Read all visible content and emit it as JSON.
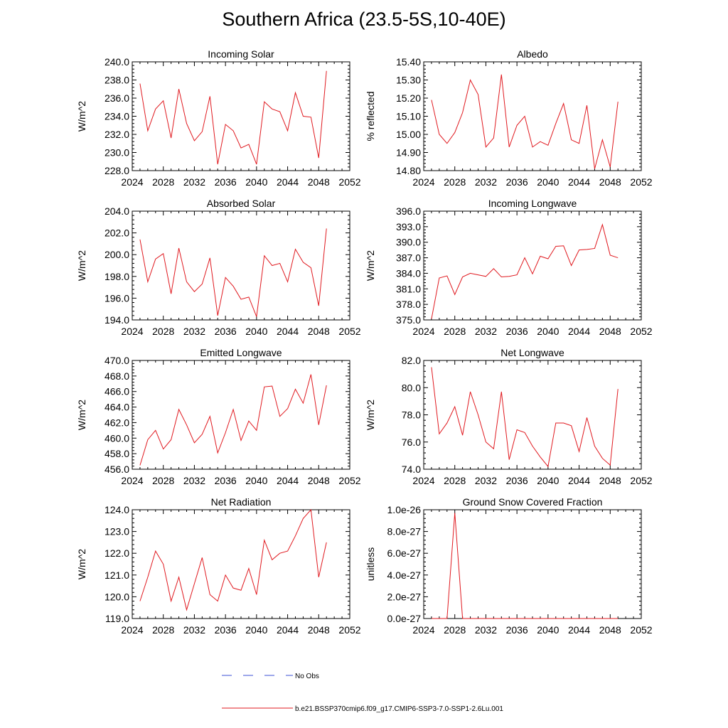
{
  "title": "Southern Africa (23.5-5S,10-40E)",
  "legend": {
    "obs_label": "No Obs",
    "obs_color": "#3b4fd6",
    "model_label": "b.e21.BSSP370cmip6.f09_g17.CMIP6-SSP3-7.0-SSP1-2.6Lu.001",
    "model_color": "#e0191f"
  },
  "chart_data": [
    {
      "type": "line",
      "title": "Incoming Solar",
      "ylabel": "W/m^2",
      "x": [
        2025,
        2026,
        2027,
        2028,
        2029,
        2030,
        2031,
        2032,
        2033,
        2034,
        2035,
        2036,
        2037,
        2038,
        2039,
        2040,
        2041,
        2042,
        2043,
        2044,
        2045,
        2046,
        2047,
        2048,
        2049
      ],
      "series": [
        {
          "values": [
            237.6,
            232.4,
            234.8,
            235.7,
            231.6,
            237.0,
            233.2,
            231.3,
            232.3,
            236.2,
            228.7,
            233.1,
            232.4,
            230.5,
            230.9,
            228.7,
            235.6,
            234.8,
            234.5,
            232.4,
            236.6,
            234.0,
            233.9,
            229.4,
            239.0
          ]
        }
      ],
      "xlim": [
        2024,
        2052
      ],
      "xticks": [
        "2024",
        "2028",
        "2032",
        "2036",
        "2040",
        "2044",
        "2048",
        "2052"
      ],
      "ylim": [
        228.0,
        240.0
      ],
      "yticks": [
        "228.0",
        "230.0",
        "232.0",
        "234.0",
        "236.0",
        "238.0",
        "240.0"
      ]
    },
    {
      "type": "line",
      "title": "Albedo",
      "ylabel": "% reflected",
      "x": [
        2025,
        2026,
        2027,
        2028,
        2029,
        2030,
        2031,
        2032,
        2033,
        2034,
        2035,
        2036,
        2037,
        2038,
        2039,
        2040,
        2041,
        2042,
        2043,
        2044,
        2045,
        2046,
        2047,
        2048,
        2049
      ],
      "series": [
        {
          "values": [
            15.19,
            15.0,
            14.95,
            15.01,
            15.12,
            15.3,
            15.22,
            14.93,
            14.98,
            15.33,
            14.93,
            15.05,
            15.1,
            14.93,
            14.96,
            14.94,
            15.06,
            15.17,
            14.97,
            14.95,
            15.16,
            14.81,
            14.97,
            14.82,
            15.18
          ]
        }
      ],
      "xlim": [
        2024,
        2052
      ],
      "xticks": [
        "2024",
        "2028",
        "2032",
        "2036",
        "2040",
        "2044",
        "2048",
        "2052"
      ],
      "ylim": [
        14.8,
        15.4
      ],
      "yticks": [
        "14.80",
        "14.90",
        "15.00",
        "15.10",
        "15.20",
        "15.30",
        "15.40"
      ]
    },
    {
      "type": "line",
      "title": "Absorbed Solar",
      "ylabel": "W/m^2",
      "x": [
        2025,
        2026,
        2027,
        2028,
        2029,
        2030,
        2031,
        2032,
        2033,
        2034,
        2035,
        2036,
        2037,
        2038,
        2039,
        2040,
        2041,
        2042,
        2043,
        2044,
        2045,
        2046,
        2047,
        2048,
        2049
      ],
      "series": [
        {
          "values": [
            201.4,
            197.5,
            199.6,
            200.1,
            196.4,
            200.6,
            197.5,
            196.6,
            197.3,
            199.7,
            194.4,
            197.9,
            197.1,
            195.9,
            196.1,
            194.3,
            199.9,
            199.0,
            199.2,
            197.5,
            200.5,
            199.3,
            198.8,
            195.3,
            202.4
          ]
        }
      ],
      "xlim": [
        2024,
        2052
      ],
      "xticks": [
        "2024",
        "2028",
        "2032",
        "2036",
        "2040",
        "2044",
        "2048",
        "2052"
      ],
      "ylim": [
        194.0,
        204.0
      ],
      "yticks": [
        "194.0",
        "196.0",
        "198.0",
        "200.0",
        "202.0",
        "204.0"
      ]
    },
    {
      "type": "line",
      "title": "Incoming Longwave",
      "ylabel": "W/m^2",
      "x": [
        2025,
        2026,
        2027,
        2028,
        2029,
        2030,
        2031,
        2032,
        2033,
        2034,
        2035,
        2036,
        2037,
        2038,
        2039,
        2040,
        2041,
        2042,
        2043,
        2044,
        2045,
        2046,
        2047,
        2048,
        2049
      ],
      "series": [
        {
          "values": [
            375.2,
            383.1,
            383.5,
            379.9,
            383.3,
            384.0,
            383.7,
            383.4,
            384.9,
            383.3,
            383.4,
            383.7,
            387.0,
            383.9,
            387.3,
            386.8,
            389.2,
            389.3,
            385.5,
            388.5,
            388.6,
            388.8,
            393.4,
            387.5,
            387.0
          ]
        }
      ],
      "xlim": [
        2024,
        2052
      ],
      "xticks": [
        "2024",
        "2028",
        "2032",
        "2036",
        "2040",
        "2044",
        "2048",
        "2052"
      ],
      "ylim": [
        375.0,
        396.0
      ],
      "yticks": [
        "375.0",
        "378.0",
        "381.0",
        "384.0",
        "387.0",
        "390.0",
        "393.0",
        "396.0"
      ]
    },
    {
      "type": "line",
      "title": "Emitted Longwave",
      "ylabel": "W/m^2",
      "x": [
        2025,
        2026,
        2027,
        2028,
        2029,
        2030,
        2031,
        2032,
        2033,
        2034,
        2035,
        2036,
        2037,
        2038,
        2039,
        2040,
        2041,
        2042,
        2043,
        2044,
        2045,
        2046,
        2047,
        2048,
        2049
      ],
      "series": [
        {
          "values": [
            456.5,
            459.8,
            461.0,
            458.6,
            459.8,
            463.7,
            461.7,
            459.4,
            460.5,
            462.8,
            458.1,
            460.7,
            463.7,
            459.7,
            462.2,
            461.0,
            466.6,
            466.7,
            462.8,
            463.8,
            466.3,
            464.5,
            468.2,
            461.7,
            466.8
          ]
        }
      ],
      "xlim": [
        2024,
        2052
      ],
      "xticks": [
        "2024",
        "2028",
        "2032",
        "2036",
        "2040",
        "2044",
        "2048",
        "2052"
      ],
      "ylim": [
        456.0,
        470.0
      ],
      "yticks": [
        "456.0",
        "458.0",
        "460.0",
        "462.0",
        "464.0",
        "466.0",
        "468.0",
        "470.0"
      ]
    },
    {
      "type": "line",
      "title": "Net Longwave",
      "ylabel": "W/m^2",
      "x": [
        2025,
        2026,
        2027,
        2028,
        2029,
        2030,
        2031,
        2032,
        2033,
        2034,
        2035,
        2036,
        2037,
        2038,
        2039,
        2040,
        2041,
        2042,
        2043,
        2044,
        2045,
        2046,
        2047,
        2048,
        2049
      ],
      "series": [
        {
          "values": [
            81.5,
            76.6,
            77.4,
            78.6,
            76.5,
            79.7,
            78.0,
            76.0,
            75.5,
            79.7,
            74.7,
            76.9,
            76.7,
            75.7,
            74.9,
            74.2,
            77.4,
            77.4,
            77.2,
            75.3,
            77.8,
            75.7,
            74.8,
            74.3,
            79.9
          ]
        }
      ],
      "xlim": [
        2024,
        2052
      ],
      "xticks": [
        "2024",
        "2028",
        "2032",
        "2036",
        "2040",
        "2044",
        "2048",
        "2052"
      ],
      "ylim": [
        74.0,
        82.0
      ],
      "yticks": [
        "74.0",
        "76.0",
        "78.0",
        "80.0",
        "82.0"
      ]
    },
    {
      "type": "line",
      "title": "Net Radiation",
      "ylabel": "W/m^2",
      "x": [
        2025,
        2026,
        2027,
        2028,
        2029,
        2030,
        2031,
        2032,
        2033,
        2034,
        2035,
        2036,
        2037,
        2038,
        2039,
        2040,
        2041,
        2042,
        2043,
        2044,
        2045,
        2046,
        2047,
        2048,
        2049
      ],
      "series": [
        {
          "values": [
            119.8,
            120.9,
            122.1,
            121.5,
            119.8,
            120.9,
            119.4,
            120.6,
            121.8,
            120.1,
            119.8,
            121.0,
            120.4,
            120.3,
            121.3,
            120.1,
            122.6,
            121.7,
            122.0,
            122.1,
            122.8,
            123.6,
            124.0,
            120.9,
            122.5
          ]
        }
      ],
      "xlim": [
        2024,
        2052
      ],
      "xticks": [
        "2024",
        "2028",
        "2032",
        "2036",
        "2040",
        "2044",
        "2048",
        "2052"
      ],
      "ylim": [
        119.0,
        124.0
      ],
      "yticks": [
        "119.0",
        "120.0",
        "121.0",
        "122.0",
        "123.0",
        "124.0"
      ]
    },
    {
      "type": "line",
      "title": "Ground Snow Covered Fraction",
      "ylabel": "unitless",
      "x": [
        2025,
        2026,
        2027,
        2028,
        2029,
        2030,
        2031,
        2032,
        2033,
        2034,
        2035,
        2036,
        2037,
        2038,
        2039,
        2040,
        2041,
        2042,
        2043,
        2044,
        2045,
        2046,
        2047,
        2048,
        2049
      ],
      "series": [
        {
          "values": [
            0,
            0,
            0,
            9.7e-27,
            0,
            0,
            0,
            0,
            0,
            0,
            0,
            0,
            0,
            0,
            0,
            0,
            0,
            0,
            0,
            0,
            0,
            0,
            0,
            0,
            0
          ]
        }
      ],
      "xlim": [
        2024,
        2052
      ],
      "xticks": [
        "2024",
        "2028",
        "2032",
        "2036",
        "2040",
        "2044",
        "2048",
        "2052"
      ],
      "ylim": [
        0,
        1e-26
      ],
      "yticks": [
        "0.0e-27",
        "2.0e-27",
        "4.0e-27",
        "6.0e-27",
        "8.0e-27",
        "1.0e-26"
      ]
    }
  ]
}
